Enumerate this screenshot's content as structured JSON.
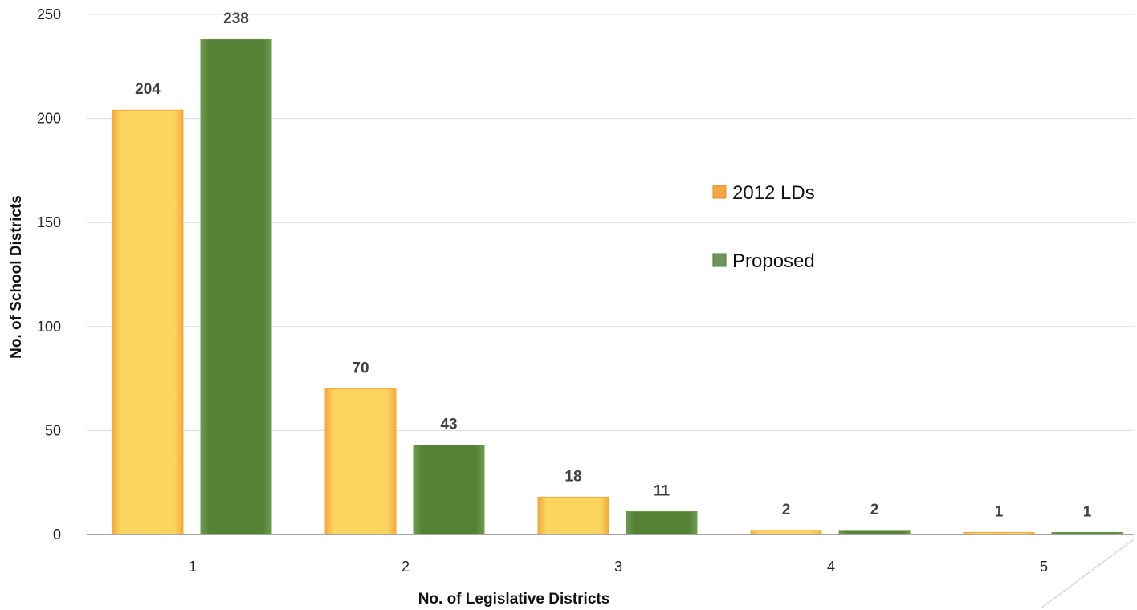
{
  "chart_data": {
    "type": "bar",
    "title": "",
    "xlabel": "No. of Legislative Districts",
    "ylabel": "No. of School Districts",
    "categories": [
      "1",
      "2",
      "3",
      "4",
      "5"
    ],
    "series": [
      {
        "name": "2012 LDs",
        "values": [
          204,
          70,
          18,
          2,
          1
        ],
        "color": "#FBD560",
        "edge_color": "#F4A93A"
      },
      {
        "name": "Proposed",
        "values": [
          238,
          43,
          11,
          2,
          1
        ],
        "color": "#548235",
        "edge_color": "#6E9B4E"
      }
    ],
    "ylim": [
      0,
      250
    ],
    "yticks": [
      0,
      50,
      100,
      150,
      200,
      250
    ],
    "grid": true,
    "legend_position": "center-right",
    "data_labels": true
  },
  "colors": {
    "gridline": "#D9D9D9",
    "axis_line": "#A6A6A6",
    "legend_2012": "#F5A742",
    "legend_proposed": "#70955A"
  }
}
